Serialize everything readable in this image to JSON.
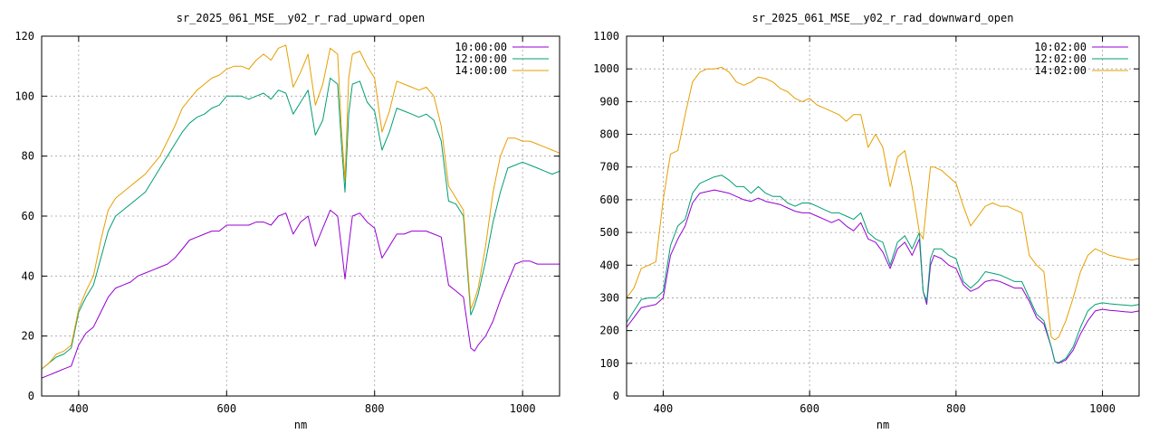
{
  "colors": {
    "c10": "#9400d3",
    "c12": "#009e73",
    "c14": "#e69f00",
    "mix": "#3a6ea5",
    "grid": "#a0a0a0",
    "axis": "#000000"
  },
  "chart_data": [
    {
      "type": "line",
      "title": "sr_2025_061_MSE__y02_r_rad_upward_open",
      "xlabel": "nm",
      "ylabel": "",
      "xlim": [
        350,
        1050
      ],
      "ylim": [
        0,
        120
      ],
      "xticks": [
        400,
        600,
        800,
        1000
      ],
      "yticks": [
        0,
        20,
        40,
        60,
        80,
        100,
        120
      ],
      "grid": true,
      "legend_position": "top-right",
      "legend": [
        "10:00:00",
        "12:00:00",
        "14:00:00"
      ],
      "series_colors": [
        "#9400d3",
        "#009e73",
        "#e69f00"
      ],
      "x": [
        350,
        360,
        370,
        380,
        390,
        400,
        410,
        420,
        430,
        440,
        450,
        460,
        470,
        480,
        490,
        500,
        510,
        520,
        530,
        540,
        550,
        560,
        570,
        580,
        590,
        600,
        610,
        620,
        630,
        640,
        650,
        660,
        670,
        680,
        690,
        700,
        710,
        720,
        730,
        740,
        750,
        755,
        760,
        765,
        770,
        780,
        790,
        800,
        810,
        820,
        830,
        840,
        850,
        860,
        870,
        880,
        890,
        900,
        910,
        920,
        930,
        935,
        940,
        950,
        960,
        970,
        980,
        990,
        1000,
        1010,
        1020,
        1030,
        1040,
        1050
      ],
      "series": [
        {
          "values": [
            6,
            7,
            8,
            9,
            10,
            17,
            21,
            23,
            28,
            33,
            36,
            37,
            38,
            40,
            41,
            42,
            43,
            44,
            46,
            49,
            52,
            53,
            54,
            55,
            55,
            57,
            57,
            57,
            57,
            58,
            58,
            57,
            60,
            61,
            54,
            58,
            60,
            50,
            56,
            62,
            60,
            50,
            39,
            50,
            60,
            61,
            58,
            56,
            46,
            50,
            54,
            54,
            55,
            55,
            55,
            54,
            53,
            37,
            35,
            33,
            16,
            15,
            17,
            20,
            25,
            32,
            38,
            44,
            45,
            45,
            44,
            44,
            44,
            44
          ]
        },
        {
          "values": [
            9,
            11,
            13,
            14,
            16,
            28,
            33,
            37,
            46,
            55,
            60,
            62,
            64,
            66,
            68,
            72,
            76,
            80,
            84,
            88,
            91,
            93,
            94,
            96,
            97,
            100,
            100,
            100,
            99,
            100,
            101,
            99,
            102,
            101,
            94,
            98,
            102,
            87,
            92,
            106,
            104,
            85,
            68,
            94,
            104,
            105,
            98,
            95,
            82,
            88,
            96,
            95,
            94,
            93,
            94,
            92,
            85,
            65,
            64,
            60,
            27,
            30,
            34,
            45,
            58,
            68,
            76,
            77,
            78,
            77,
            76,
            75,
            74,
            75
          ]
        },
        {
          "values": [
            9,
            11,
            14,
            15,
            17,
            29,
            35,
            40,
            52,
            62,
            66,
            68,
            70,
            72,
            74,
            77,
            80,
            85,
            90,
            96,
            99,
            102,
            104,
            106,
            107,
            109,
            110,
            110,
            109,
            112,
            114,
            112,
            116,
            117,
            103,
            108,
            114,
            97,
            104,
            116,
            114,
            90,
            72,
            106,
            114,
            115,
            110,
            106,
            88,
            95,
            105,
            104,
            103,
            102,
            103,
            100,
            90,
            70,
            66,
            62,
            29,
            32,
            36,
            50,
            68,
            80,
            86,
            86,
            85,
            85,
            84,
            83,
            82,
            81
          ]
        }
      ]
    },
    {
      "type": "line",
      "title": "sr_2025_061_MSE__y02_r_rad_downward_open",
      "xlabel": "nm",
      "ylabel": "",
      "xlim": [
        350,
        1050
      ],
      "ylim": [
        0,
        1100
      ],
      "xticks": [
        400,
        600,
        800,
        1000
      ],
      "yticks": [
        0,
        100,
        200,
        300,
        400,
        500,
        600,
        700,
        800,
        900,
        1000,
        1100
      ],
      "grid": true,
      "legend_position": "top-right",
      "legend": [
        "10:02:00",
        "12:02:00",
        "14:02:00"
      ],
      "series_colors": [
        "#9400d3",
        "#009e73",
        "#e69f00"
      ],
      "x": [
        350,
        360,
        370,
        380,
        390,
        400,
        410,
        420,
        430,
        440,
        450,
        460,
        470,
        480,
        490,
        500,
        510,
        520,
        530,
        540,
        550,
        560,
        570,
        580,
        590,
        600,
        610,
        620,
        630,
        640,
        650,
        660,
        670,
        680,
        690,
        700,
        710,
        720,
        730,
        740,
        750,
        755,
        760,
        765,
        770,
        780,
        790,
        800,
        810,
        820,
        830,
        840,
        850,
        860,
        870,
        880,
        890,
        900,
        910,
        920,
        930,
        935,
        940,
        950,
        960,
        970,
        980,
        990,
        1000,
        1010,
        1020,
        1030,
        1040,
        1050
      ],
      "series": [
        {
          "values": [
            210,
            240,
            270,
            275,
            280,
            300,
            430,
            480,
            520,
            590,
            620,
            625,
            630,
            625,
            620,
            610,
            600,
            595,
            605,
            595,
            590,
            585,
            575,
            565,
            560,
            560,
            550,
            540,
            530,
            540,
            520,
            505,
            530,
            480,
            470,
            440,
            390,
            450,
            470,
            430,
            480,
            320,
            280,
            400,
            430,
            420,
            400,
            390,
            340,
            320,
            330,
            350,
            355,
            350,
            340,
            330,
            330,
            290,
            240,
            220,
            150,
            105,
            100,
            110,
            140,
            190,
            230,
            260,
            265,
            262,
            260,
            258,
            256,
            260
          ]
        },
        {
          "values": [
            225,
            260,
            295,
            300,
            300,
            320,
            460,
            520,
            540,
            620,
            650,
            660,
            670,
            675,
            660,
            640,
            640,
            620,
            640,
            620,
            610,
            610,
            590,
            580,
            590,
            590,
            580,
            570,
            560,
            560,
            550,
            540,
            560,
            500,
            480,
            470,
            400,
            470,
            490,
            450,
            500,
            320,
            290,
            420,
            450,
            450,
            430,
            420,
            350,
            330,
            350,
            380,
            375,
            370,
            360,
            350,
            350,
            300,
            250,
            230,
            150,
            105,
            102,
            115,
            150,
            210,
            260,
            280,
            285,
            282,
            280,
            278,
            276,
            280
          ]
        },
        {
          "values": [
            300,
            330,
            390,
            400,
            410,
            600,
            740,
            750,
            860,
            960,
            990,
            1000,
            1000,
            1005,
            990,
            960,
            950,
            960,
            975,
            970,
            960,
            940,
            930,
            910,
            900,
            910,
            890,
            880,
            870,
            860,
            840,
            860,
            860,
            760,
            800,
            760,
            640,
            730,
            750,
            640,
            500,
            480,
            590,
            700,
            700,
            690,
            670,
            650,
            580,
            520,
            550,
            580,
            590,
            580,
            580,
            570,
            560,
            430,
            400,
            380,
            180,
            172,
            180,
            230,
            300,
            380,
            430,
            450,
            440,
            430,
            425,
            420,
            415,
            420
          ]
        }
      ]
    }
  ]
}
